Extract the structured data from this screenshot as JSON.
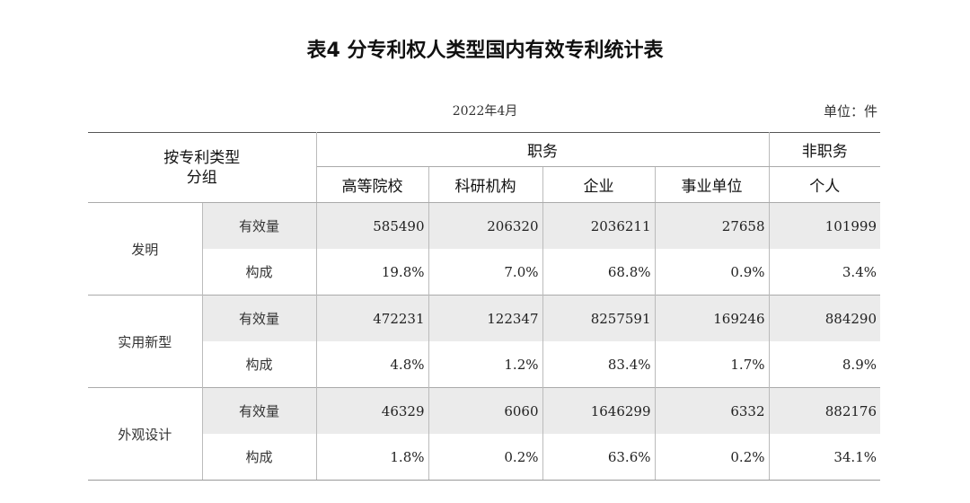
{
  "title": "表4 分专利权人类型国内有效专利统计表",
  "date": "2022年4月",
  "unit": "单位：件",
  "header": {
    "group_col_line1": "按专利类型",
    "group_col_line2": "分组",
    "service": "职务",
    "non_service": "非职务",
    "columns": [
      "高等院校",
      "科研机构",
      "企业",
      "事业单位",
      "个人"
    ]
  },
  "groups": [
    {
      "name": "发明",
      "rows": [
        {
          "label": "有效量",
          "values": [
            "585490",
            "206320",
            "2036211",
            "27658",
            "101999"
          ]
        },
        {
          "label": "构成",
          "values": [
            "19.8%",
            "7.0%",
            "68.8%",
            "0.9%",
            "3.4%"
          ]
        }
      ]
    },
    {
      "name": "实用新型",
      "rows": [
        {
          "label": "有效量",
          "values": [
            "472231",
            "122347",
            "8257591",
            "169246",
            "884290"
          ]
        },
        {
          "label": "构成",
          "values": [
            "4.8%",
            "1.2%",
            "83.4%",
            "1.7%",
            "8.9%"
          ]
        }
      ]
    },
    {
      "name": "外观设计",
      "rows": [
        {
          "label": "有效量",
          "values": [
            "46329",
            "6060",
            "1646299",
            "6332",
            "882176"
          ]
        },
        {
          "label": "构成",
          "values": [
            "1.8%",
            "0.2%",
            "63.6%",
            "0.2%",
            "34.1%"
          ]
        }
      ]
    }
  ]
}
